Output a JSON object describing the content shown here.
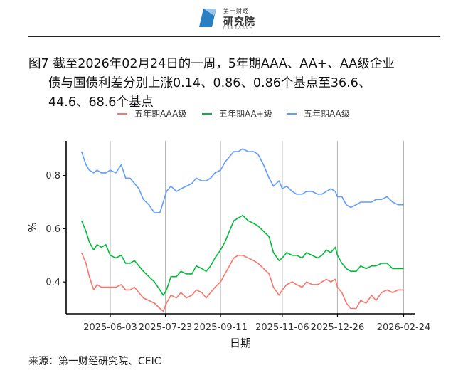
{
  "header": {
    "logo_small": "第一财经",
    "logo_main": "研究院",
    "logo_en": "RESEARCH"
  },
  "title": {
    "line1": "图7  截至2026年02月24日的一周，5年期AAA、AA+、AA级企业",
    "line2": "债与国债利差分别上涨0.14、0.86、0.86个基点至36.6、",
    "line3": "44.6、68.6个基点"
  },
  "source": "来源：第一财经研究院、CEIC",
  "colors": {
    "aaa": "#F8766D",
    "aaplus": "#00BA38",
    "aa": "#619CFF",
    "grid": "#b3b3b3",
    "axis": "#000000"
  },
  "chart_data": {
    "type": "line",
    "xlabel": "日期",
    "ylabel": "%",
    "ylim": [
      0.28,
      0.93
    ],
    "y_ticks": [
      0.4,
      0.6,
      0.8
    ],
    "y_tick_labels": [
      "0.4",
      "0.6",
      "0.8"
    ],
    "x_ticks": [
      "2025-06-03",
      "2025-07-23",
      "2025-09-11",
      "2025-11-06",
      "2025-12-26",
      "2026-02-24"
    ],
    "x_range": [
      "2025-04-24",
      "2026-03-06"
    ],
    "grid": "vertical",
    "legend_position": "top",
    "x": [
      "2025-05-08",
      "2025-05-12",
      "2025-05-15",
      "2025-05-19",
      "2025-05-22",
      "2025-05-26",
      "2025-05-30",
      "2025-06-03",
      "2025-06-08",
      "2025-06-13",
      "2025-06-17",
      "2025-06-21",
      "2025-06-25",
      "2025-06-29",
      "2025-07-03",
      "2025-07-08",
      "2025-07-13",
      "2025-07-18",
      "2025-07-21",
      "2025-07-24",
      "2025-07-28",
      "2025-08-02",
      "2025-08-06",
      "2025-08-11",
      "2025-08-16",
      "2025-08-20",
      "2025-08-25",
      "2025-08-29",
      "2025-09-02",
      "2025-09-06",
      "2025-09-11",
      "2025-09-15",
      "2025-09-19",
      "2025-09-23",
      "2025-09-27",
      "2025-10-01",
      "2025-10-06",
      "2025-10-11",
      "2025-10-15",
      "2025-10-20",
      "2025-10-25",
      "2025-10-29",
      "2025-11-03",
      "2025-11-06",
      "2025-11-10",
      "2025-11-15",
      "2025-11-19",
      "2025-11-24",
      "2025-11-28",
      "2025-12-03",
      "2025-12-08",
      "2025-12-12",
      "2025-12-16",
      "2025-12-20",
      "2025-12-24",
      "2025-12-26",
      "2025-12-30",
      "2026-01-03",
      "2026-01-07",
      "2026-01-12",
      "2026-01-16",
      "2026-01-21",
      "2026-01-26",
      "2026-01-30",
      "2026-02-04",
      "2026-02-09",
      "2026-02-14",
      "2026-02-19",
      "2026-02-24"
    ],
    "series": [
      {
        "name": "五年期AAA级",
        "color": "#F8766D",
        "values": [
          0.51,
          0.47,
          0.42,
          0.37,
          0.39,
          0.38,
          0.38,
          0.38,
          0.38,
          0.39,
          0.37,
          0.37,
          0.38,
          0.36,
          0.34,
          0.33,
          0.32,
          0.3,
          0.29,
          0.32,
          0.35,
          0.34,
          0.36,
          0.34,
          0.35,
          0.37,
          0.36,
          0.34,
          0.36,
          0.38,
          0.4,
          0.43,
          0.46,
          0.49,
          0.5,
          0.5,
          0.49,
          0.48,
          0.47,
          0.45,
          0.43,
          0.38,
          0.35,
          0.37,
          0.39,
          0.4,
          0.39,
          0.38,
          0.4,
          0.39,
          0.39,
          0.4,
          0.41,
          0.4,
          0.41,
          0.38,
          0.36,
          0.32,
          0.3,
          0.3,
          0.33,
          0.32,
          0.35,
          0.33,
          0.36,
          0.37,
          0.36,
          0.37,
          0.37
        ]
      },
      {
        "name": "五年期AA+级",
        "color": "#00BA38",
        "values": [
          0.63,
          0.59,
          0.55,
          0.52,
          0.54,
          0.53,
          0.54,
          0.5,
          0.49,
          0.5,
          0.47,
          0.47,
          0.48,
          0.46,
          0.44,
          0.42,
          0.4,
          0.37,
          0.35,
          0.37,
          0.42,
          0.42,
          0.44,
          0.43,
          0.43,
          0.46,
          0.45,
          0.44,
          0.46,
          0.49,
          0.52,
          0.55,
          0.59,
          0.63,
          0.64,
          0.65,
          0.63,
          0.62,
          0.61,
          0.59,
          0.57,
          0.51,
          0.48,
          0.49,
          0.51,
          0.5,
          0.5,
          0.49,
          0.51,
          0.5,
          0.49,
          0.5,
          0.52,
          0.51,
          0.53,
          0.5,
          0.47,
          0.45,
          0.44,
          0.44,
          0.46,
          0.45,
          0.46,
          0.46,
          0.47,
          0.47,
          0.45,
          0.45,
          0.45
        ]
      },
      {
        "name": "五年期AA级",
        "color": "#619CFF",
        "values": [
          0.89,
          0.84,
          0.82,
          0.81,
          0.82,
          0.81,
          0.81,
          0.82,
          0.81,
          0.84,
          0.79,
          0.79,
          0.77,
          0.75,
          0.71,
          0.69,
          0.66,
          0.66,
          0.7,
          0.74,
          0.76,
          0.74,
          0.75,
          0.76,
          0.77,
          0.79,
          0.78,
          0.78,
          0.79,
          0.81,
          0.82,
          0.85,
          0.87,
          0.89,
          0.89,
          0.9,
          0.89,
          0.89,
          0.88,
          0.84,
          0.79,
          0.76,
          0.78,
          0.75,
          0.76,
          0.74,
          0.73,
          0.73,
          0.74,
          0.74,
          0.73,
          0.73,
          0.74,
          0.75,
          0.74,
          0.72,
          0.72,
          0.69,
          0.68,
          0.69,
          0.7,
          0.7,
          0.7,
          0.71,
          0.71,
          0.72,
          0.7,
          0.69,
          0.69
        ]
      }
    ]
  }
}
